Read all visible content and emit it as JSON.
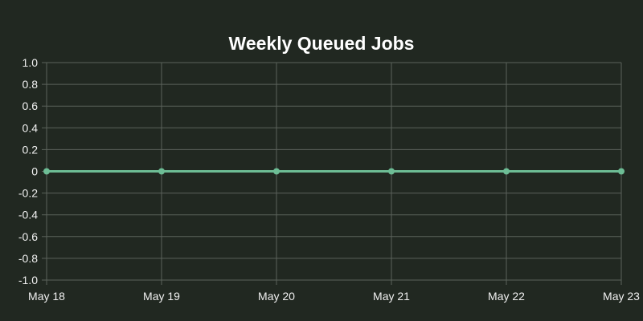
{
  "chart_data": {
    "type": "line",
    "title": "Weekly Queued Jobs",
    "categories": [
      "May 18",
      "May 19",
      "May 20",
      "May 21",
      "May 22",
      "May 23"
    ],
    "series": [
      {
        "values": [
          0,
          0,
          0,
          0,
          0,
          0
        ]
      }
    ],
    "ylim": [
      -1.0,
      1.0
    ],
    "yticks": [
      "1.0",
      "0.8",
      "0.6",
      "0.4",
      "0.2",
      "0",
      "-0.2",
      "-0.4",
      "-0.6",
      "-0.8",
      "-1.0"
    ],
    "grid": true,
    "colors": {
      "background": "#212821",
      "grid": "#5b625b",
      "line": "#6dbd95",
      "text": "#f0f0f0"
    }
  }
}
